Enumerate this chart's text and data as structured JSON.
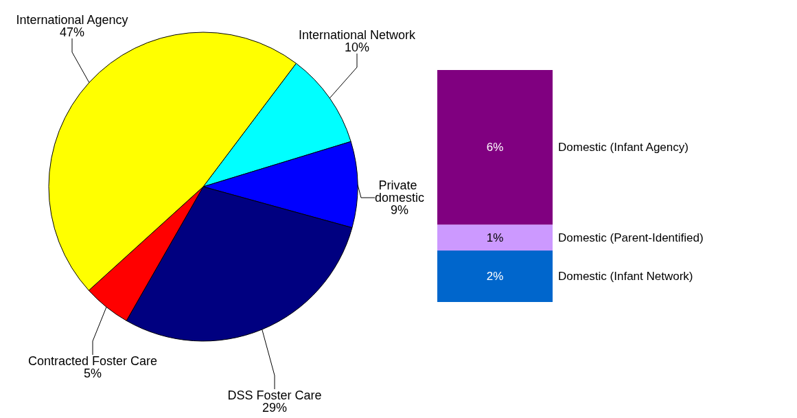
{
  "chart_data": [
    {
      "type": "pie",
      "categories": [
        "International Network",
        "Private domestic",
        "DSS Foster Care",
        "Contracted Foster Care",
        "International Agency"
      ],
      "values": [
        10,
        9,
        29,
        5,
        47
      ],
      "colors": [
        "#00ffff",
        "#0000ff",
        "#000080",
        "#ff0000",
        "#ffff00"
      ],
      "value_labels": [
        "10%",
        "9%",
        "29%",
        "5%",
        "47%"
      ],
      "legend": false
    },
    {
      "type": "bar",
      "stacked": true,
      "categories": [
        null
      ],
      "series": [
        {
          "name": "Domestic (Infant Network)",
          "color": "#0066cc",
          "values": [
            2
          ],
          "value_labels": [
            "2%"
          ]
        },
        {
          "name": "Domestic (Parent-Identified)",
          "color": "#cc99ff",
          "values": [
            1
          ],
          "value_labels": [
            "1%"
          ]
        },
        {
          "name": "Domestic (Infant Agency)",
          "color": "#800080",
          "values": [
            6
          ],
          "value_labels": [
            "6%"
          ]
        }
      ],
      "legend": false,
      "tick_labels": false
    }
  ]
}
